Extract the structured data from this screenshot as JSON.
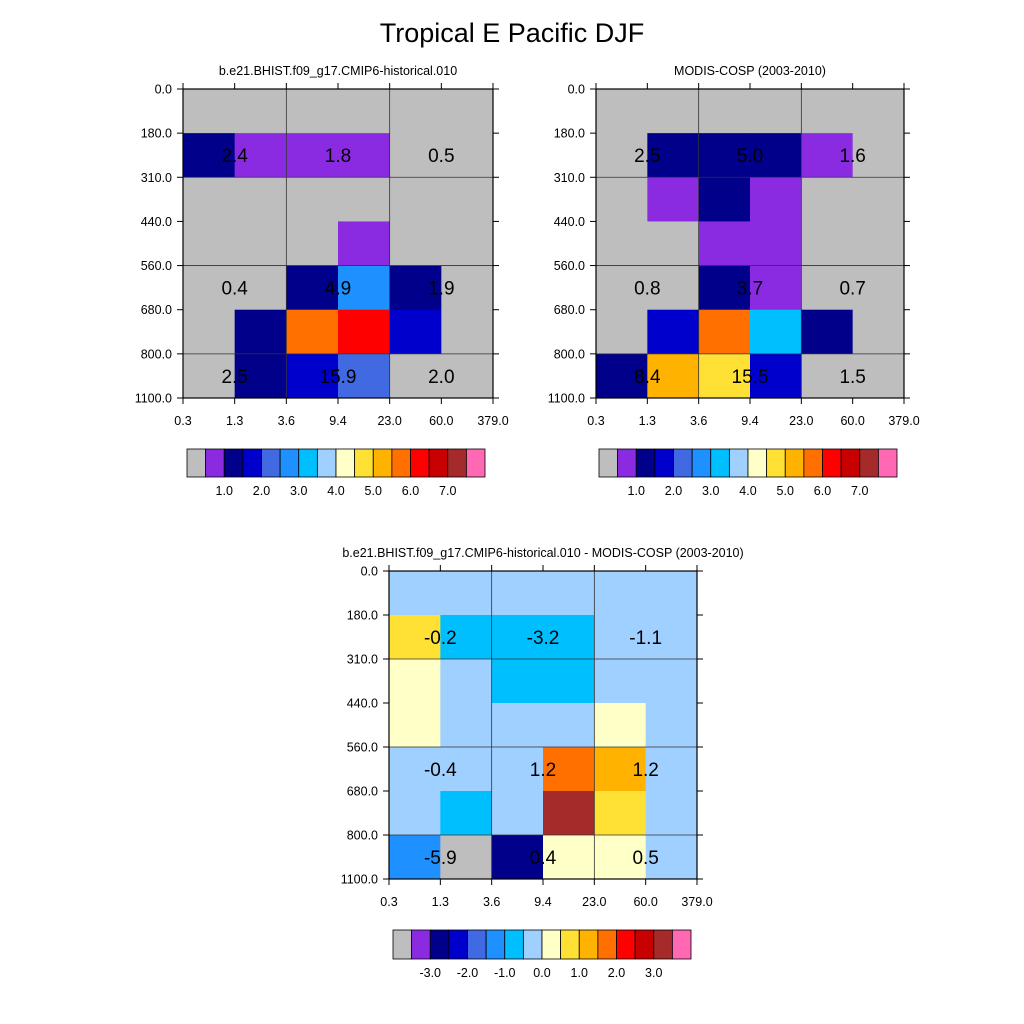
{
  "page_title": "Tropical E Pacific DJF",
  "palettes": {
    "main": [
      "#bebebe",
      "#8a2be2",
      "#00008b",
      "#0000cd",
      "#4169e1",
      "#1e90ff",
      "#00bfff",
      "#a0d0ff",
      "#ffffc8",
      "#ffe135",
      "#ffb300",
      "#ff7000",
      "#ff0000",
      "#c80000",
      "#a52a2a",
      "#ff69b4"
    ],
    "diff": [
      "#bebebe",
      "#8a2be2",
      "#00008b",
      "#0000cd",
      "#4169e1",
      "#1e90ff",
      "#00bfff",
      "#a0d0ff",
      "#ffffc8",
      "#ffe135",
      "#ffb300",
      "#ff7000",
      "#ff0000",
      "#c80000",
      "#a52a2a",
      "#ff69b4"
    ]
  },
  "chart_data": [
    {
      "type": "heatmap",
      "title": "b.e21.BHIST.f09_g17.CMIP6-historical.010",
      "x_ticks": [
        "0.3",
        "1.3",
        "3.6",
        "9.4",
        "23.0",
        "60.0",
        "379.0"
      ],
      "y_ticks": [
        "0.0",
        "180.0",
        "310.0",
        "440.0",
        "560.0",
        "680.0",
        "800.0",
        "1100.0"
      ],
      "color_index_grid": [
        [
          0,
          0,
          0,
          0,
          0,
          0
        ],
        [
          2,
          1,
          1,
          1,
          0,
          0
        ],
        [
          0,
          0,
          0,
          0,
          0,
          0
        ],
        [
          0,
          0,
          0,
          1,
          0,
          0
        ],
        [
          0,
          0,
          2,
          5,
          2,
          0
        ],
        [
          0,
          2,
          11,
          12,
          3,
          0
        ],
        [
          0,
          2,
          3,
          4,
          0,
          0
        ]
      ],
      "annotations": [
        {
          "row_band": 1,
          "col_band": 0,
          "text": "2.4"
        },
        {
          "row_band": 1,
          "col_band": 1,
          "text": "1.8"
        },
        {
          "row_band": 1,
          "col_band": 2,
          "text": "0.5"
        },
        {
          "row_band": 4,
          "col_band": 0,
          "text": "0.4"
        },
        {
          "row_band": 4,
          "col_band": 1,
          "text": "4.9"
        },
        {
          "row_band": 4,
          "col_band": 2,
          "text": "1.9"
        },
        {
          "row_band": 6,
          "col_band": 0,
          "text": "2.5"
        },
        {
          "row_band": 6,
          "col_band": 1,
          "text": "15.9"
        },
        {
          "row_band": 6,
          "col_band": 2,
          "text": "2.0"
        }
      ],
      "colorbar": {
        "palette": "main",
        "labels": [
          "1.0",
          "2.0",
          "3.0",
          "4.0",
          "5.0",
          "6.0",
          "7.0"
        ]
      }
    },
    {
      "type": "heatmap",
      "title": "MODIS-COSP (2003-2010)",
      "x_ticks": [
        "0.3",
        "1.3",
        "3.6",
        "9.4",
        "23.0",
        "60.0",
        "379.0"
      ],
      "y_ticks": [
        "0.0",
        "180.0",
        "310.0",
        "440.0",
        "560.0",
        "680.0",
        "800.0",
        "1100.0"
      ],
      "color_index_grid": [
        [
          0,
          0,
          0,
          0,
          0,
          0
        ],
        [
          0,
          2,
          2,
          2,
          1,
          0
        ],
        [
          0,
          1,
          2,
          1,
          0,
          0
        ],
        [
          0,
          0,
          1,
          1,
          0,
          0
        ],
        [
          0,
          0,
          2,
          1,
          0,
          0
        ],
        [
          0,
          3,
          11,
          6,
          2,
          0
        ],
        [
          2,
          10,
          9,
          3,
          0,
          0
        ]
      ],
      "annotations": [
        {
          "row_band": 1,
          "col_band": 0,
          "text": "2.5"
        },
        {
          "row_band": 1,
          "col_band": 1,
          "text": "5.0"
        },
        {
          "row_band": 1,
          "col_band": 2,
          "text": "1.6"
        },
        {
          "row_band": 4,
          "col_band": 0,
          "text": "0.8"
        },
        {
          "row_band": 4,
          "col_band": 1,
          "text": "3.7"
        },
        {
          "row_band": 4,
          "col_band": 2,
          "text": "0.7"
        },
        {
          "row_band": 6,
          "col_band": 0,
          "text": "8.4"
        },
        {
          "row_band": 6,
          "col_band": 1,
          "text": "15.5"
        },
        {
          "row_band": 6,
          "col_band": 2,
          "text": "1.5"
        }
      ],
      "colorbar": {
        "palette": "main",
        "labels": [
          "1.0",
          "2.0",
          "3.0",
          "4.0",
          "5.0",
          "6.0",
          "7.0"
        ]
      }
    },
    {
      "type": "heatmap",
      "title": "b.e21.BHIST.f09_g17.CMIP6-historical.010 - MODIS-COSP (2003-2010)",
      "x_ticks": [
        "0.3",
        "1.3",
        "3.6",
        "9.4",
        "23.0",
        "60.0",
        "379.0"
      ],
      "y_ticks": [
        "0.0",
        "180.0",
        "310.0",
        "440.0",
        "560.0",
        "680.0",
        "800.0",
        "1100.0"
      ],
      "color_index_grid": [
        [
          7,
          7,
          7,
          7,
          7,
          7
        ],
        [
          9,
          6,
          6,
          6,
          7,
          7
        ],
        [
          8,
          7,
          6,
          6,
          7,
          7
        ],
        [
          8,
          7,
          7,
          7,
          8,
          7
        ],
        [
          7,
          7,
          7,
          11,
          10,
          7
        ],
        [
          7,
          6,
          7,
          14,
          9,
          7
        ],
        [
          5,
          0,
          2,
          8,
          8,
          7
        ]
      ],
      "annotations": [
        {
          "row_band": 1,
          "col_band": 0,
          "text": "-0.2"
        },
        {
          "row_band": 1,
          "col_band": 1,
          "text": "-3.2"
        },
        {
          "row_band": 1,
          "col_band": 2,
          "text": "-1.1"
        },
        {
          "row_band": 4,
          "col_band": 0,
          "text": "-0.4"
        },
        {
          "row_band": 4,
          "col_band": 1,
          "text": "1.2"
        },
        {
          "row_band": 4,
          "col_band": 2,
          "text": "1.2"
        },
        {
          "row_band": 6,
          "col_band": 0,
          "text": "-5.9"
        },
        {
          "row_band": 6,
          "col_band": 1,
          "text": "0.4"
        },
        {
          "row_band": 6,
          "col_band": 2,
          "text": "0.5"
        }
      ],
      "colorbar": {
        "palette": "diff",
        "labels": [
          "-3.0",
          "-2.0",
          "-1.0",
          "0.0",
          "1.0",
          "2.0",
          "3.0"
        ]
      }
    }
  ]
}
